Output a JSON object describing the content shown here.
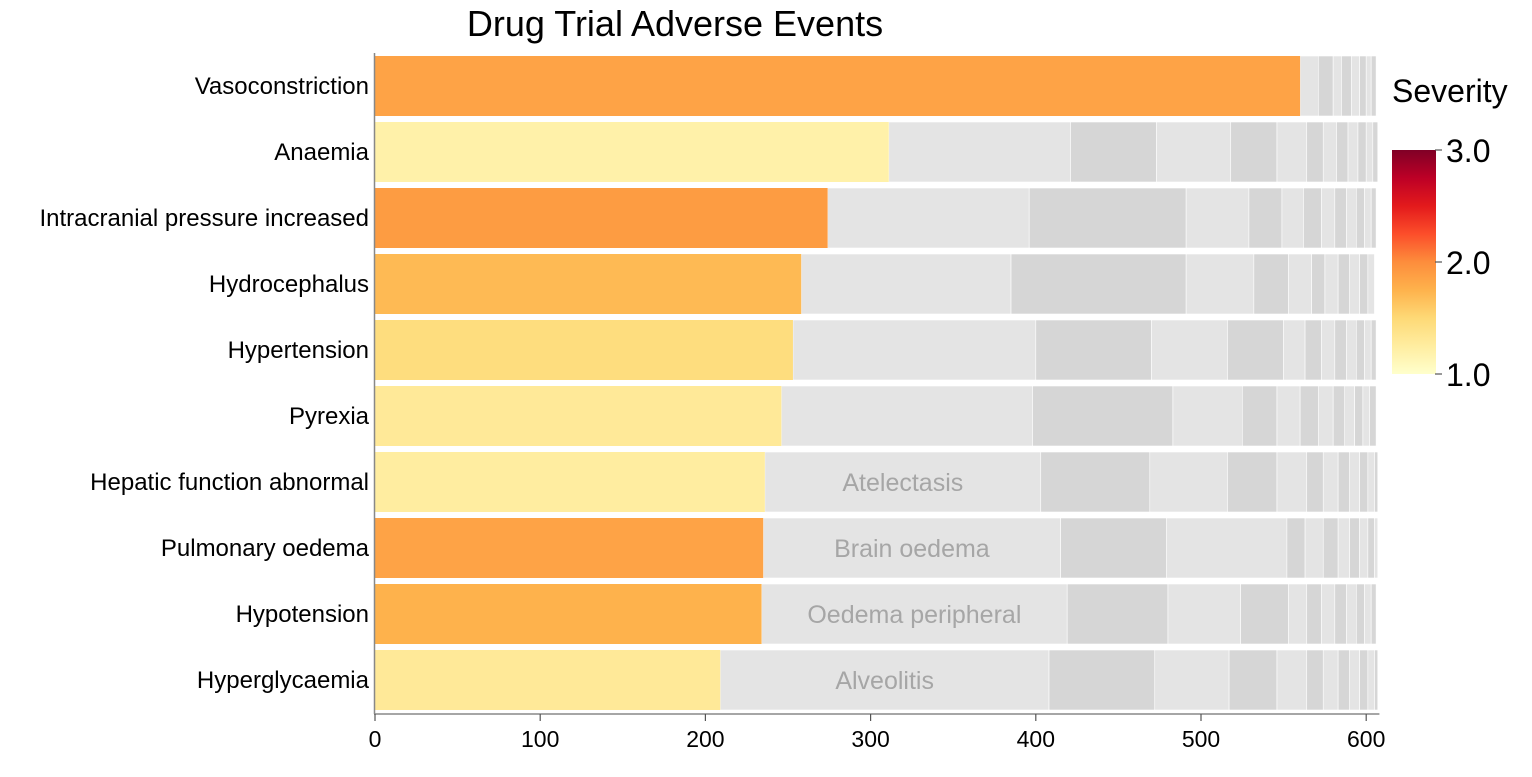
{
  "chart_data": {
    "type": "bar",
    "title": "Drug Trial Adverse Events",
    "xlabel": "",
    "ylabel": "",
    "xlim": [
      0,
      608
    ],
    "x_ticks": [
      {
        "value": 0,
        "label": "0"
      },
      {
        "value": 100,
        "label": "100"
      },
      {
        "value": 200,
        "label": "200"
      },
      {
        "value": 300,
        "label": "300"
      },
      {
        "value": 400,
        "label": "400"
      },
      {
        "value": 500,
        "label": "500"
      },
      {
        "value": 600,
        "label": "600"
      }
    ],
    "grid": false,
    "color_scale": {
      "title": "Severity",
      "min": 1.0,
      "max": 3.0,
      "ticks": [
        {
          "value": 3.0,
          "label": "3.0"
        },
        {
          "value": 2.0,
          "label": "2.0"
        },
        {
          "value": 1.0,
          "label": "1.0"
        }
      ],
      "stops": [
        "#ffffcc",
        "#ffeda0",
        "#fed976",
        "#feb24c",
        "#fd8d3c",
        "#fc4e2a",
        "#e31a1c",
        "#bd0026",
        "#800026"
      ],
      "placement": "right"
    },
    "other_color_dark": "#d6d6d6",
    "other_color_light": "#e4e4e4",
    "rows": [
      {
        "label": "Vasoconstriction",
        "value": 560,
        "severity": 1.85,
        "others": [
          [
            560,
            571
          ],
          [
            571,
            580
          ],
          [
            580,
            585
          ],
          [
            585,
            591
          ],
          [
            591,
            596
          ],
          [
            596,
            600
          ],
          [
            600,
            603
          ],
          [
            603,
            606
          ]
        ],
        "other_label": ""
      },
      {
        "label": "Anaemia",
        "value": 311,
        "severity": 1.2,
        "others": [
          [
            311,
            421
          ],
          [
            421,
            473
          ],
          [
            473,
            518
          ],
          [
            518,
            546
          ],
          [
            546,
            564
          ],
          [
            564,
            574
          ],
          [
            574,
            582
          ],
          [
            582,
            589
          ],
          [
            589,
            595
          ],
          [
            595,
            600
          ],
          [
            600,
            604
          ],
          [
            604,
            607
          ]
        ],
        "other_label": ""
      },
      {
        "label": "Intracranial pressure increased",
        "value": 274,
        "severity": 1.9,
        "others": [
          [
            274,
            396
          ],
          [
            396,
            491
          ],
          [
            491,
            529
          ],
          [
            529,
            549
          ],
          [
            549,
            562
          ],
          [
            562,
            573
          ],
          [
            573,
            581
          ],
          [
            581,
            588
          ],
          [
            588,
            594
          ],
          [
            594,
            599
          ],
          [
            599,
            603
          ],
          [
            603,
            606
          ]
        ],
        "other_label": ""
      },
      {
        "label": "Hydrocephalus",
        "value": 258,
        "severity": 1.7,
        "others": [
          [
            258,
            385
          ],
          [
            385,
            491
          ],
          [
            491,
            532
          ],
          [
            532,
            553
          ],
          [
            553,
            567
          ],
          [
            567,
            575
          ],
          [
            575,
            583
          ],
          [
            583,
            590
          ],
          [
            590,
            596
          ],
          [
            596,
            601
          ],
          [
            601,
            605
          ]
        ],
        "other_label": ""
      },
      {
        "label": "Hypertension",
        "value": 253,
        "severity": 1.45,
        "others": [
          [
            253,
            400
          ],
          [
            400,
            470
          ],
          [
            470,
            516
          ],
          [
            516,
            550
          ],
          [
            550,
            563
          ],
          [
            563,
            573
          ],
          [
            573,
            581
          ],
          [
            581,
            588
          ],
          [
            588,
            594
          ],
          [
            594,
            599
          ],
          [
            599,
            603
          ],
          [
            603,
            606
          ]
        ],
        "other_label": ""
      },
      {
        "label": "Pyrexia",
        "value": 246,
        "severity": 1.3,
        "others": [
          [
            246,
            398
          ],
          [
            398,
            483
          ],
          [
            483,
            525
          ],
          [
            525,
            546
          ],
          [
            546,
            560
          ],
          [
            560,
            571
          ],
          [
            571,
            580
          ],
          [
            580,
            587
          ],
          [
            587,
            593
          ],
          [
            593,
            598
          ],
          [
            598,
            602
          ],
          [
            602,
            606
          ]
        ],
        "other_label": ""
      },
      {
        "label": "Hepatic function abnormal",
        "value": 236,
        "severity": 1.25,
        "others": [
          [
            236,
            403
          ],
          [
            403,
            469
          ],
          [
            469,
            516
          ],
          [
            516,
            546
          ],
          [
            546,
            564
          ],
          [
            564,
            574
          ],
          [
            574,
            583
          ],
          [
            583,
            590
          ],
          [
            590,
            596
          ],
          [
            596,
            601
          ],
          [
            601,
            605
          ],
          [
            605,
            607
          ]
        ],
        "other_label": "Atelectasis"
      },
      {
        "label": "Pulmonary oedema",
        "value": 235,
        "severity": 1.85,
        "others": [
          [
            235,
            415
          ],
          [
            415,
            479
          ],
          [
            479,
            552
          ],
          [
            552,
            563
          ],
          [
            563,
            574
          ],
          [
            574,
            583
          ],
          [
            583,
            590
          ],
          [
            590,
            596
          ],
          [
            596,
            601
          ],
          [
            601,
            605
          ],
          [
            605,
            607
          ]
        ],
        "other_label": "Brain oedema"
      },
      {
        "label": "Hypotension",
        "value": 234,
        "severity": 1.75,
        "others": [
          [
            234,
            419
          ],
          [
            419,
            480
          ],
          [
            480,
            524
          ],
          [
            524,
            553
          ],
          [
            553,
            564
          ],
          [
            564,
            573
          ],
          [
            573,
            581
          ],
          [
            581,
            588
          ],
          [
            588,
            594
          ],
          [
            594,
            599
          ],
          [
            599,
            603
          ],
          [
            603,
            606
          ]
        ],
        "other_label": "Oedema peripheral"
      },
      {
        "label": "Hyperglycaemia",
        "value": 209,
        "severity": 1.3,
        "others": [
          [
            209,
            408
          ],
          [
            408,
            472
          ],
          [
            472,
            517
          ],
          [
            517,
            546
          ],
          [
            546,
            564
          ],
          [
            564,
            574
          ],
          [
            574,
            583
          ],
          [
            583,
            590
          ],
          [
            590,
            596
          ],
          [
            596,
            601
          ],
          [
            601,
            605
          ],
          [
            605,
            607
          ]
        ],
        "other_label": "Alveolitis"
      }
    ]
  }
}
